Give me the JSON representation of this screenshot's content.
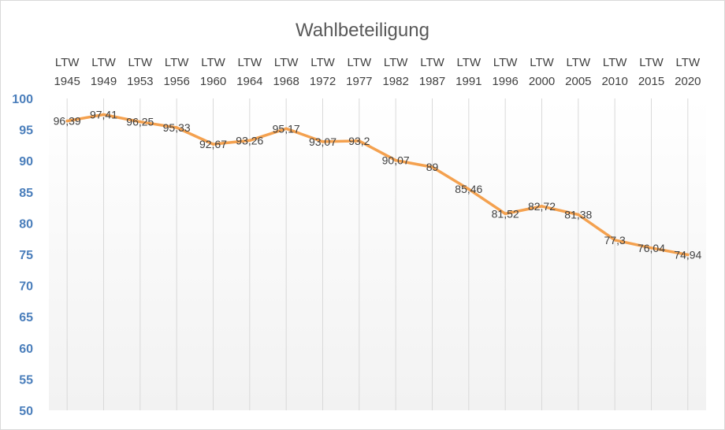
{
  "chart_data": {
    "type": "line",
    "title": "Wahlbeteiligung",
    "xlabel": "",
    "ylabel": "",
    "categories": [
      [
        "LTW",
        "1945"
      ],
      [
        "LTW",
        "1949"
      ],
      [
        "LTW",
        "1953"
      ],
      [
        "LTW",
        "1956"
      ],
      [
        "LTW",
        "1960"
      ],
      [
        "LTW",
        "1964"
      ],
      [
        "LTW",
        "1968"
      ],
      [
        "LTW",
        "1972"
      ],
      [
        "LTW",
        "1977"
      ],
      [
        "LTW",
        "1982"
      ],
      [
        "LTW",
        "1987"
      ],
      [
        "LTW",
        "1991"
      ],
      [
        "LTW",
        "1996"
      ],
      [
        "LTW",
        "2000"
      ],
      [
        "LTW",
        "2005"
      ],
      [
        "LTW",
        "2010"
      ],
      [
        "LTW",
        "2015"
      ],
      [
        "LTW",
        "2020"
      ]
    ],
    "series": [
      {
        "values": [
          96.39,
          97.41,
          96.25,
          95.33,
          92.67,
          93.26,
          95.17,
          93.07,
          93.2,
          90.07,
          89,
          85.46,
          81.52,
          82.72,
          81.38,
          77.3,
          76.04,
          74.94
        ],
        "value_labels": [
          "96,39",
          "97,41",
          "96,25",
          "95,33",
          "92,67",
          "93,26",
          "95,17",
          "93,07",
          "93,2",
          "90,07",
          "89",
          "85,46",
          "81,52",
          "82,72",
          "81,38",
          "77,3",
          "76,04",
          "74,94"
        ],
        "color": "#f4a14f"
      }
    ],
    "ylim": [
      50,
      100
    ],
    "yticks": [
      100,
      95,
      90,
      85,
      80,
      75,
      70,
      65,
      60,
      55,
      50
    ],
    "x_axis_position": "top",
    "grid": {
      "vertical": true,
      "horizontal": false
    },
    "legend": "none",
    "colors": {
      "line": "#f4a14f",
      "ytick": "#4a7ebb",
      "grid": "#d9d9d9",
      "plot_gradient_top": "#ffffff",
      "plot_gradient_bottom": "#f2f2f2"
    }
  }
}
